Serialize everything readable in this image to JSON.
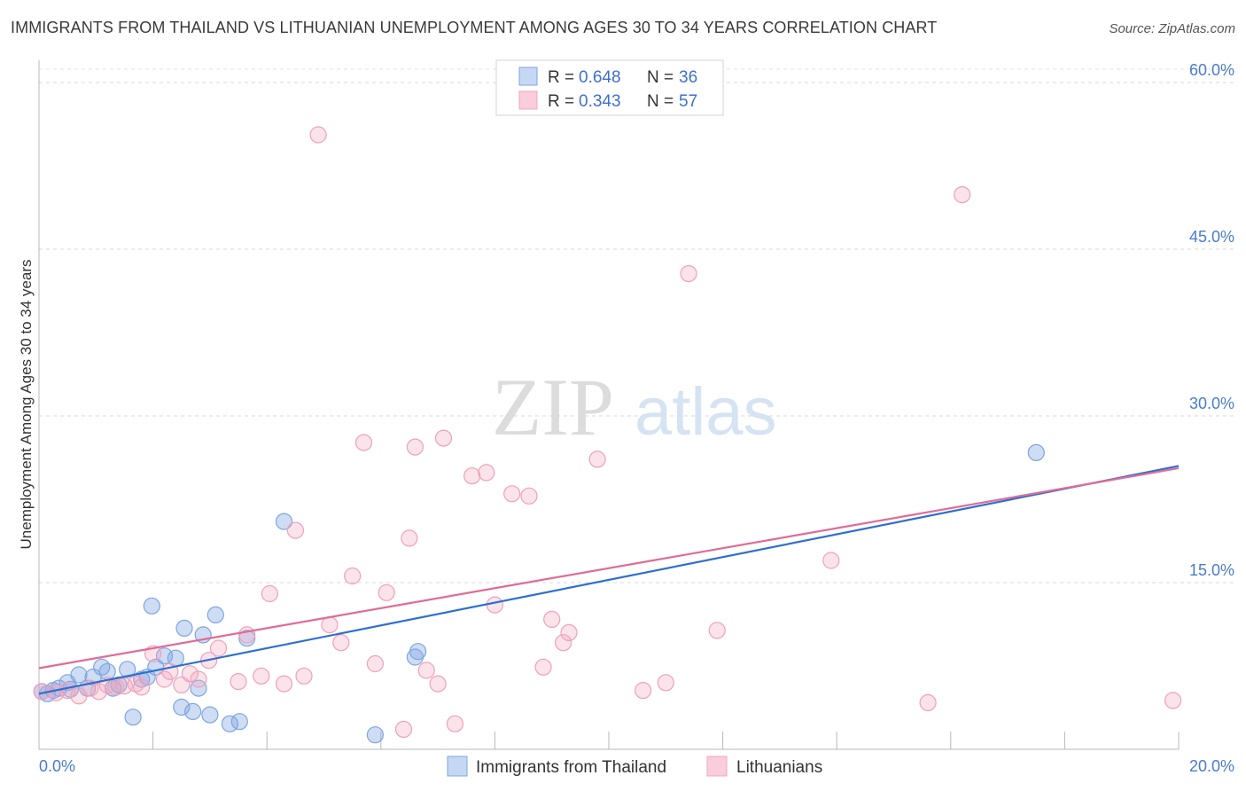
{
  "title": "IMMIGRANTS FROM THAILAND VS LITHUANIAN UNEMPLOYMENT AMONG AGES 30 TO 34 YEARS CORRELATION CHART",
  "source": "Source: ZipAtlas.com",
  "watermark": {
    "zip": "ZIP",
    "atlas": "atlas"
  },
  "legend": {
    "r_label": "R =",
    "n_label": "N =",
    "series": [
      {
        "r": "0.648",
        "n": "36"
      },
      {
        "r": "0.343",
        "n": "57"
      }
    ]
  },
  "chart_data": {
    "type": "scatter",
    "title": "IMMIGRANTS FROM THAILAND VS LITHUANIAN UNEMPLOYMENT AMONG AGES 30 TO 34 YEARS CORRELATION CHART",
    "xlabel": "",
    "ylabel": "Unemployment Among Ages 30 to 34 years",
    "xlim": [
      0,
      20
    ],
    "ylim": [
      0,
      62
    ],
    "x_tick_labels": [
      {
        "value": 0,
        "label": "0.0%"
      },
      {
        "value": 20,
        "label": "20.0%"
      }
    ],
    "y_tick_labels": [
      {
        "value": 15,
        "label": "15.0%"
      },
      {
        "value": 30,
        "label": "30.0%"
      },
      {
        "value": 45,
        "label": "45.0%"
      },
      {
        "value": 60,
        "label": "60.0%"
      }
    ],
    "x_minor_ticks": [
      0,
      2,
      4,
      6,
      8,
      10,
      12,
      14,
      16,
      18,
      20
    ],
    "y_gridlines": [
      15,
      30,
      45,
      60
    ],
    "legend_position": "top-center",
    "series": [
      {
        "name": "Immigrants from Thailand",
        "color": "#7ea6e0",
        "line_color": "#2e6fd1",
        "trend": {
          "x": [
            0,
            20
          ],
          "y": [
            5.0,
            25.5
          ]
        },
        "points": [
          [
            0.05,
            5.2
          ],
          [
            0.15,
            5.0
          ],
          [
            0.25,
            5.3
          ],
          [
            0.35,
            5.5
          ],
          [
            0.5,
            6.0
          ],
          [
            0.55,
            5.4
          ],
          [
            0.7,
            6.7
          ],
          [
            0.85,
            5.5
          ],
          [
            0.95,
            6.5
          ],
          [
            1.1,
            7.4
          ],
          [
            1.2,
            7.0
          ],
          [
            1.3,
            5.5
          ],
          [
            1.4,
            5.8
          ],
          [
            1.55,
            7.2
          ],
          [
            1.65,
            2.9
          ],
          [
            1.8,
            6.3
          ],
          [
            1.9,
            6.5
          ],
          [
            1.98,
            12.9
          ],
          [
            2.05,
            7.4
          ],
          [
            2.2,
            8.4
          ],
          [
            2.4,
            8.2
          ],
          [
            2.5,
            3.8
          ],
          [
            2.55,
            10.9
          ],
          [
            2.7,
            3.4
          ],
          [
            2.8,
            5.5
          ],
          [
            2.88,
            10.3
          ],
          [
            3.0,
            3.1
          ],
          [
            3.1,
            12.1
          ],
          [
            3.35,
            2.3
          ],
          [
            3.52,
            2.5
          ],
          [
            3.65,
            10.0
          ],
          [
            4.3,
            20.5
          ],
          [
            5.9,
            1.3
          ],
          [
            6.6,
            8.3
          ],
          [
            6.65,
            8.8
          ],
          [
            17.5,
            26.7
          ]
        ]
      },
      {
        "name": "Lithuanians",
        "color": "#f4a7bf",
        "line_color": "#e06b96",
        "trend": {
          "x": [
            0,
            20
          ],
          "y": [
            7.3,
            25.3
          ]
        },
        "points": [
          [
            0.05,
            5.2
          ],
          [
            0.3,
            5.1
          ],
          [
            0.5,
            5.3
          ],
          [
            0.7,
            4.8
          ],
          [
            0.9,
            5.5
          ],
          [
            1.05,
            5.2
          ],
          [
            1.2,
            5.8
          ],
          [
            1.35,
            5.6
          ],
          [
            1.5,
            5.7
          ],
          [
            1.7,
            5.9
          ],
          [
            1.8,
            5.6
          ],
          [
            2.0,
            8.6
          ],
          [
            2.2,
            6.3
          ],
          [
            2.3,
            7.0
          ],
          [
            2.5,
            5.8
          ],
          [
            2.65,
            6.8
          ],
          [
            2.8,
            6.3
          ],
          [
            2.98,
            8.0
          ],
          [
            3.15,
            9.1
          ],
          [
            3.5,
            6.1
          ],
          [
            3.65,
            10.3
          ],
          [
            3.9,
            6.6
          ],
          [
            4.05,
            14.0
          ],
          [
            4.3,
            5.9
          ],
          [
            4.5,
            19.7
          ],
          [
            4.65,
            6.6
          ],
          [
            4.9,
            55.3
          ],
          [
            5.1,
            11.2
          ],
          [
            5.3,
            9.6
          ],
          [
            5.5,
            15.6
          ],
          [
            5.7,
            27.6
          ],
          [
            5.9,
            7.7
          ],
          [
            6.1,
            14.1
          ],
          [
            6.4,
            1.8
          ],
          [
            6.5,
            19.0
          ],
          [
            6.6,
            27.2
          ],
          [
            6.8,
            7.1
          ],
          [
            7.0,
            5.9
          ],
          [
            7.1,
            28.0
          ],
          [
            7.3,
            2.3
          ],
          [
            7.6,
            24.6
          ],
          [
            7.85,
            24.9
          ],
          [
            8.0,
            13.0
          ],
          [
            8.3,
            23.0
          ],
          [
            8.6,
            22.8
          ],
          [
            8.85,
            7.4
          ],
          [
            9.0,
            11.7
          ],
          [
            9.2,
            9.6
          ],
          [
            9.3,
            10.5
          ],
          [
            9.8,
            26.1
          ],
          [
            10.6,
            5.3
          ],
          [
            11.0,
            6.0
          ],
          [
            11.4,
            42.8
          ],
          [
            11.9,
            10.7
          ],
          [
            13.9,
            17.0
          ],
          [
            15.6,
            4.2
          ],
          [
            16.2,
            49.9
          ],
          [
            19.9,
            4.4
          ]
        ]
      }
    ]
  }
}
